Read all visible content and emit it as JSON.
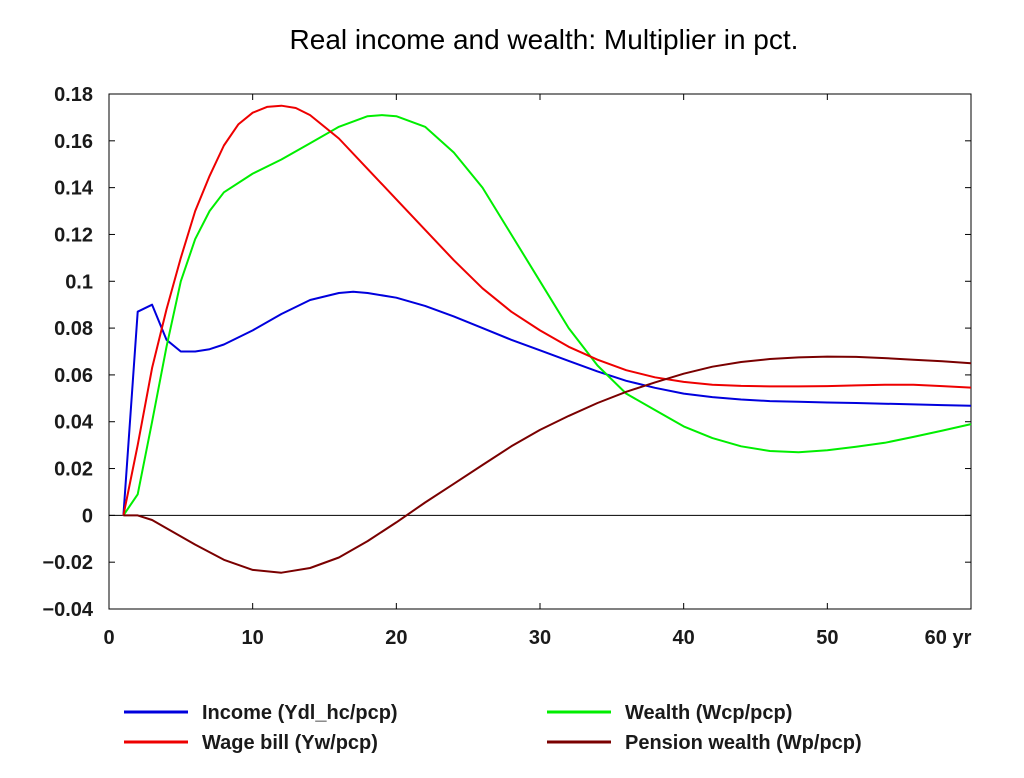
{
  "chart_data": {
    "type": "line",
    "title": "Real income and wealth: Multiplier in pct.",
    "xlabel": "",
    "ylabel": "",
    "xlim": [
      0,
      60
    ],
    "ylim": [
      -0.04,
      0.18
    ],
    "x_ticks": [
      "0",
      "10",
      "20",
      "30",
      "40",
      "50",
      "60 yr"
    ],
    "x_tick_values": [
      0,
      10,
      20,
      30,
      40,
      50,
      60
    ],
    "y_ticks": [
      "-0.04",
      "-0.02",
      "0",
      "0.02",
      "0.04",
      "0.06",
      "0.08",
      "0.1",
      "0.12",
      "0.14",
      "0.16",
      "0.18"
    ],
    "y_tick_values": [
      -0.04,
      -0.02,
      0,
      0.02,
      0.04,
      0.06,
      0.08,
      0.1,
      0.12,
      0.14,
      0.16,
      0.18
    ],
    "zero_line": true,
    "grid": false,
    "legend_position": "bottom",
    "series": [
      {
        "name": "Income (Ydl_hc/pcp)",
        "color": "#0000dd",
        "x": [
          1,
          2,
          3,
          4,
          5,
          6,
          7,
          8,
          10,
          12,
          14,
          16,
          17,
          18,
          20,
          22,
          24,
          26,
          28,
          30,
          32,
          34,
          36,
          38,
          40,
          42,
          44,
          46,
          48,
          50,
          52,
          54,
          56,
          58,
          60
        ],
        "y": [
          0,
          0.087,
          0.09,
          0.075,
          0.07,
          0.07,
          0.071,
          0.073,
          0.079,
          0.086,
          0.092,
          0.095,
          0.0955,
          0.095,
          0.093,
          0.0895,
          0.085,
          0.08,
          0.075,
          0.0705,
          0.066,
          0.0615,
          0.0575,
          0.0545,
          0.052,
          0.0505,
          0.0495,
          0.0488,
          0.0485,
          0.0482,
          0.048,
          0.0477,
          0.0474,
          0.0471,
          0.0468
        ]
      },
      {
        "name": "Wealth (Wcp/pcp)",
        "color": "#00ee00",
        "x": [
          1,
          2,
          3,
          4,
          5,
          6,
          7,
          8,
          10,
          12,
          14,
          16,
          18,
          19,
          20,
          22,
          24,
          26,
          28,
          30,
          32,
          34,
          36,
          38,
          40,
          42,
          44,
          46,
          48,
          50,
          52,
          54,
          56,
          58,
          60
        ],
        "y": [
          0,
          0.009,
          0.04,
          0.072,
          0.1,
          0.118,
          0.13,
          0.138,
          0.146,
          0.152,
          0.159,
          0.166,
          0.1705,
          0.171,
          0.1705,
          0.166,
          0.155,
          0.14,
          0.12,
          0.1,
          0.08,
          0.064,
          0.052,
          0.045,
          0.038,
          0.033,
          0.0295,
          0.0275,
          0.027,
          0.0278,
          0.0293,
          0.031,
          0.0335,
          0.0362,
          0.039
        ]
      },
      {
        "name": "Wage bill (Yw/pcp)",
        "color": "#ee0000",
        "x": [
          1,
          2,
          3,
          4,
          5,
          6,
          7,
          8,
          9,
          10,
          11,
          12,
          13,
          14,
          16,
          18,
          20,
          22,
          24,
          26,
          28,
          30,
          32,
          34,
          36,
          38,
          40,
          42,
          44,
          46,
          48,
          50,
          52,
          54,
          56,
          58,
          60
        ],
        "y": [
          0,
          0.03,
          0.063,
          0.088,
          0.11,
          0.13,
          0.145,
          0.158,
          0.167,
          0.172,
          0.1745,
          0.175,
          0.174,
          0.171,
          0.161,
          0.148,
          0.135,
          0.122,
          0.109,
          0.097,
          0.087,
          0.079,
          0.072,
          0.0665,
          0.062,
          0.059,
          0.057,
          0.0558,
          0.0553,
          0.0551,
          0.0551,
          0.0552,
          0.0555,
          0.0558,
          0.0558,
          0.0552,
          0.0546
        ]
      },
      {
        "name": "Pension wealth (Wp/pcp)",
        "color": "#7a0000",
        "x": [
          1,
          2,
          3,
          4,
          6,
          8,
          10,
          12,
          14,
          16,
          18,
          20,
          22,
          24,
          26,
          28,
          30,
          32,
          34,
          36,
          38,
          40,
          42,
          44,
          46,
          48,
          50,
          52,
          54,
          56,
          58,
          60
        ],
        "y": [
          0,
          0,
          -0.002,
          -0.0055,
          -0.0125,
          -0.019,
          -0.0233,
          -0.0245,
          -0.0225,
          -0.018,
          -0.011,
          -0.003,
          0.0055,
          0.0135,
          0.0215,
          0.0295,
          0.0365,
          0.0425,
          0.048,
          0.0528,
          0.0568,
          0.0605,
          0.0635,
          0.0655,
          0.0668,
          0.0675,
          0.0678,
          0.0677,
          0.0672,
          0.0665,
          0.0658,
          0.065
        ]
      }
    ],
    "legend": [
      {
        "series": 0,
        "label": "Income (Ydl_hc/pcp)"
      },
      {
        "series": 1,
        "label": "Wealth (Wcp/pcp)"
      },
      {
        "series": 2,
        "label": "Wage bill (Yw/pcp)"
      },
      {
        "series": 3,
        "label": "Pension wealth (Wp/pcp)"
      }
    ]
  }
}
